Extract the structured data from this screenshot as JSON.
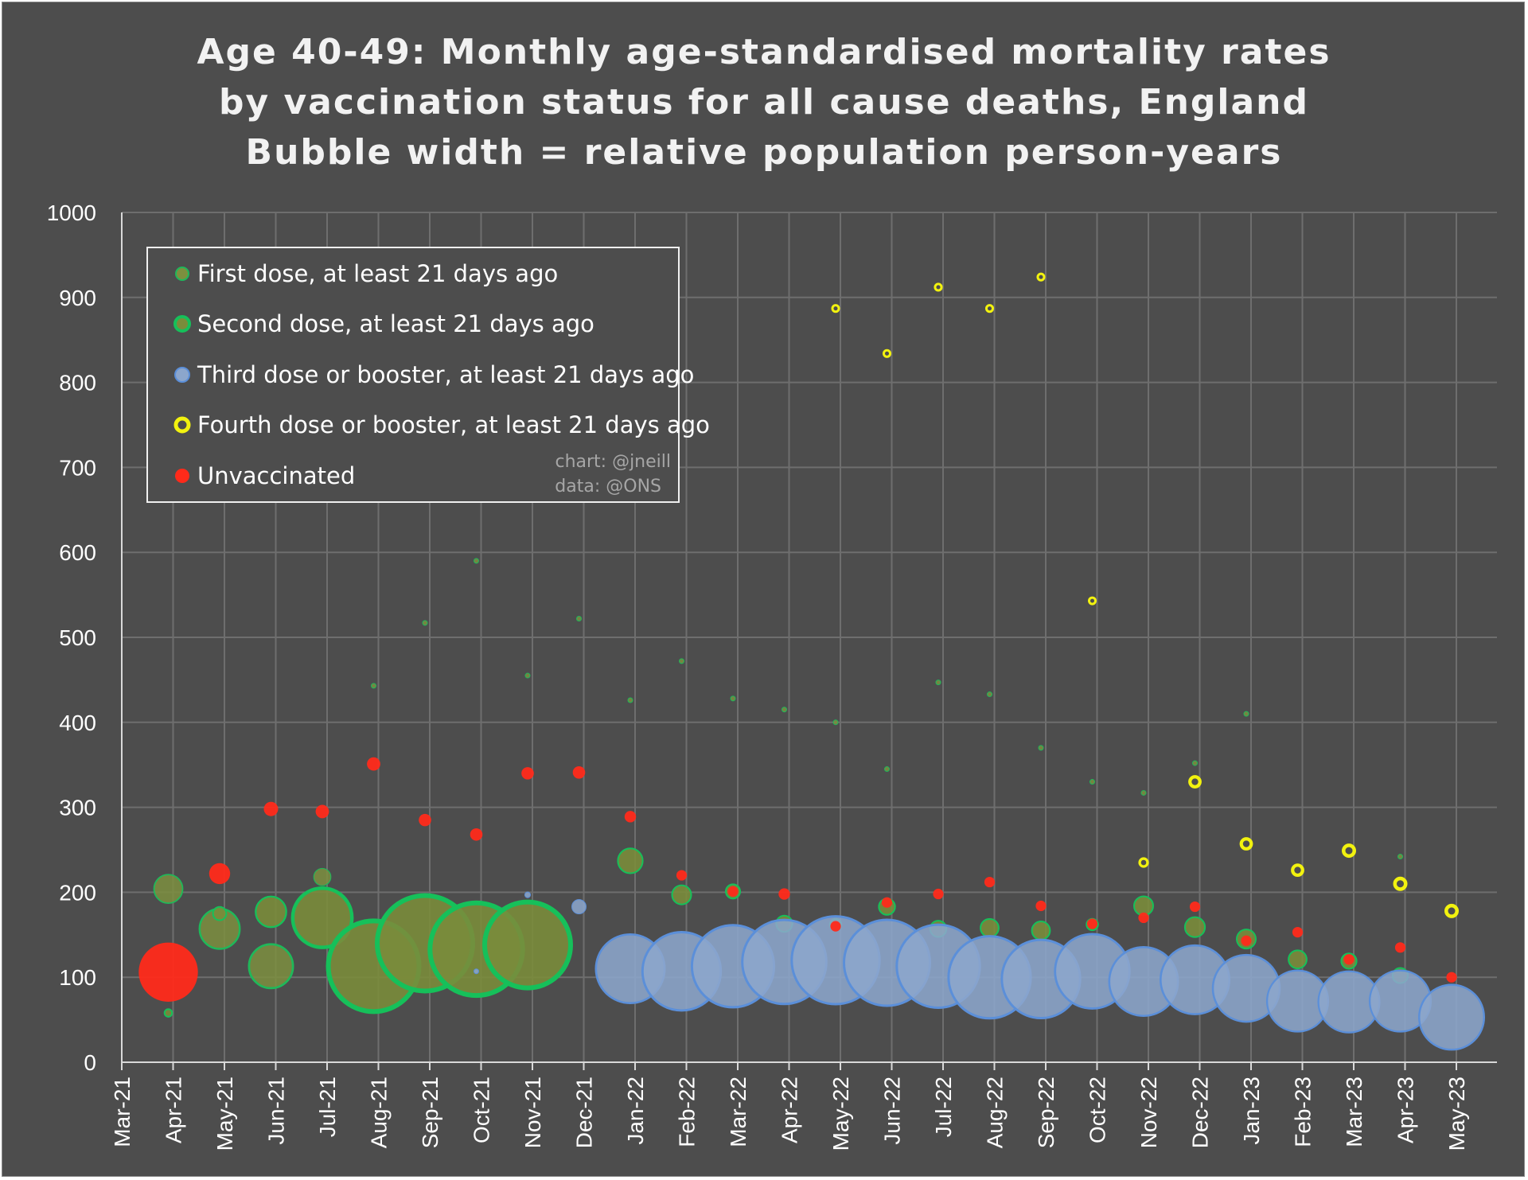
{
  "chart_data": {
    "type": "bubble",
    "title_lines": [
      "Age 40-49: Monthly age-standardised mortality rates",
      "by vaccination status for all cause deaths, England",
      "Bubble width = relative population person-years"
    ],
    "ylim": [
      0,
      1000
    ],
    "y_ticks": [
      0,
      100,
      200,
      300,
      400,
      500,
      600,
      700,
      800,
      900,
      1000
    ],
    "x_ticks": [
      "Mar-21",
      "Apr-21",
      "May-21",
      "Jun-21",
      "Jul-21",
      "Aug-21",
      "Sep-21",
      "Oct-21",
      "Nov-21",
      "Dec-21",
      "Jan-22",
      "Feb-22",
      "Mar-22",
      "Apr-22",
      "May-22",
      "Jun-22",
      "Jul-22",
      "Aug-22",
      "Sep-22",
      "Oct-22",
      "Nov-22",
      "Dec-22",
      "Jan-23",
      "Feb-23",
      "Mar-23",
      "Apr-23",
      "May-23"
    ],
    "months": [
      "Apr-21",
      "May-21",
      "Jun-21",
      "Jul-21",
      "Aug-21",
      "Sep-21",
      "Oct-21",
      "Nov-21",
      "Dec-21",
      "Jan-22",
      "Feb-22",
      "Mar-22",
      "Apr-22",
      "May-22",
      "Jun-22",
      "Jul-22",
      "Aug-22",
      "Sep-22",
      "Oct-22",
      "Nov-22",
      "Dec-22",
      "Jan-23",
      "Feb-23",
      "Mar-23",
      "Apr-23",
      "May-23"
    ],
    "series": [
      {
        "name": "First dose, at least 21 days ago",
        "key": "first",
        "color": "#7d8f3f",
        "edge": "#1fb85a",
        "values": [
          204,
          157,
          113,
          218,
          443,
          517,
          590,
          455,
          522,
          426,
          472,
          428,
          415,
          400,
          345,
          447,
          433,
          370,
          330,
          317,
          352,
          410,
          null,
          null,
          242,
          null
        ],
        "sizes": [
          0.3,
          0.42,
          0.46,
          0.18,
          0.05,
          0.05,
          0.05,
          0.05,
          0.05,
          0.05,
          0.05,
          0.05,
          0.05,
          0.05,
          0.05,
          0.05,
          0.05,
          0.05,
          0.05,
          0.05,
          0.05,
          0.05,
          null,
          null,
          0.05,
          null
        ]
      },
      {
        "name": "Second dose, at least 21 days ago",
        "key": "second",
        "color": "#7a8c3b",
        "edge": "#16c05a",
        "values": [
          58,
          175,
          177,
          170,
          113,
          140,
          133,
          138,
          null,
          237,
          197,
          201,
          163,
          162,
          183,
          157,
          158,
          155,
          162,
          184,
          159,
          145,
          121,
          119,
          102,
          null
        ],
        "sizes": [
          0.08,
          0.14,
          0.32,
          0.62,
          0.95,
          1.0,
          0.97,
          0.9,
          null,
          0.26,
          0.2,
          0.15,
          0.17,
          0.12,
          0.17,
          0.17,
          0.19,
          0.19,
          0.12,
          0.2,
          0.21,
          0.2,
          0.19,
          0.16,
          0.16,
          null
        ]
      },
      {
        "name": "Third dose or booster, at least 21 days ago",
        "key": "third",
        "color": "#8ca6cc",
        "edge": "#5b8fd9",
        "values": [
          null,
          null,
          null,
          null,
          null,
          null,
          107,
          197,
          183,
          110,
          107,
          113,
          118,
          120,
          117,
          113,
          100,
          98,
          107,
          95,
          97,
          87,
          72,
          71,
          72,
          53
        ],
        "sizes": [
          null,
          null,
          null,
          null,
          null,
          null,
          0.05,
          0.06,
          0.15,
          0.72,
          0.82,
          0.86,
          0.88,
          0.92,
          0.9,
          0.87,
          0.86,
          0.82,
          0.78,
          0.72,
          0.72,
          0.7,
          0.64,
          0.64,
          0.64,
          0.68
        ]
      },
      {
        "name": "Fourth dose or booster, at least 21 days ago",
        "key": "fourth",
        "color": "#f2f20f",
        "edge": "#f2f20f",
        "values": [
          null,
          null,
          null,
          null,
          null,
          null,
          null,
          null,
          null,
          null,
          null,
          null,
          null,
          887,
          834,
          912,
          887,
          924,
          543,
          235,
          330,
          257,
          226,
          249,
          210,
          178
        ],
        "sizes": [
          null,
          null,
          null,
          null,
          null,
          null,
          null,
          null,
          null,
          null,
          null,
          null,
          null,
          0.09,
          0.09,
          0.09,
          0.09,
          0.09,
          0.07,
          0.11,
          0.14,
          0.14,
          0.14,
          0.15,
          0.15,
          0.15
        ]
      },
      {
        "name": "Unvaccinated",
        "key": "unvax",
        "color": "#ff2a1a",
        "edge": "#ff2a1a",
        "values": [
          106,
          222,
          298,
          295,
          351,
          285,
          268,
          340,
          341,
          289,
          220,
          201,
          198,
          160,
          188,
          198,
          212,
          184,
          163,
          170,
          183,
          143,
          153,
          121,
          135,
          100
        ],
        "sizes": [
          0.62,
          0.22,
          0.15,
          0.14,
          0.14,
          0.13,
          0.13,
          0.13,
          0.13,
          0.12,
          0.11,
          0.11,
          0.12,
          0.11,
          0.11,
          0.11,
          0.11,
          0.11,
          0.11,
          0.11,
          0.11,
          0.11,
          0.11,
          0.11,
          0.11,
          0.11
        ]
      }
    ],
    "legend_position": "top-left",
    "credit_lines": [
      "chart: @jneill",
      "data: @ONS"
    ]
  }
}
